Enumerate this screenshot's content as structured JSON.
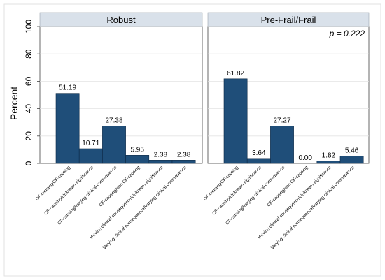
{
  "chart_data": {
    "type": "bar",
    "ylabel": "Percent",
    "ylim": [
      0,
      100
    ],
    "yticks": [
      0,
      20,
      40,
      60,
      80,
      100
    ],
    "grid": true,
    "bar_color": "#1f4e79",
    "panel_header_color": "#d9e1ea",
    "categories": [
      "CF-causing/CF-causing",
      "CF-causing/Unknown significance",
      "CF-causing/Varying clinical consequence",
      "CF-causing/non CF-causing",
      "Varying clinical consequence/Unknown significance",
      "Varying clinical consequence/Varying clinical consequence"
    ],
    "panels": [
      {
        "title": "Robust",
        "annotation": "",
        "values": [
          51.19,
          10.71,
          27.38,
          5.95,
          2.38,
          2.38
        ],
        "labels": [
          "51.19",
          "10.71",
          "27.38",
          "5.95",
          "2.38",
          "2.38"
        ]
      },
      {
        "title": "Pre-Frail/Frail",
        "annotation": "p = 0.222",
        "values": [
          61.82,
          3.64,
          27.27,
          0.0,
          1.82,
          5.46
        ],
        "labels": [
          "61.82",
          "3.64",
          "27.27",
          "0.00",
          "1.82",
          "5.46"
        ]
      }
    ]
  }
}
